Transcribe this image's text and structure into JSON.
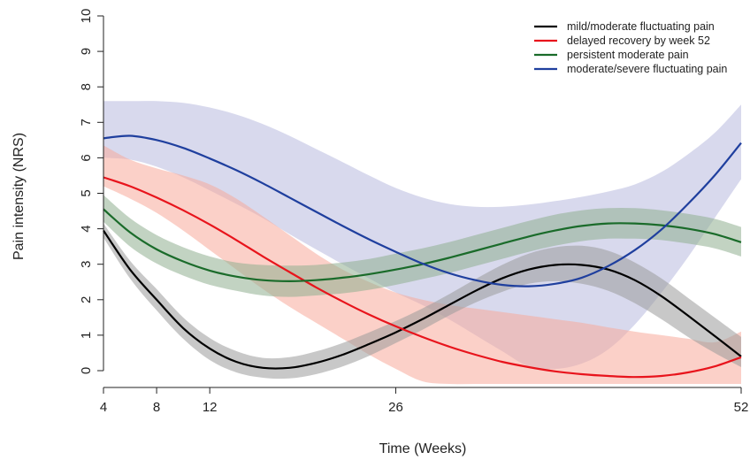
{
  "chart_data": {
    "type": "line",
    "title": "",
    "xlabel": "Time (Weeks)",
    "ylabel": "Pain intensity (NRS)",
    "xlim": [
      4,
      52
    ],
    "ylim": [
      0,
      10
    ],
    "xticks": [
      4,
      8,
      12,
      26,
      52
    ],
    "yticks": [
      0,
      1,
      2,
      3,
      4,
      5,
      6,
      7,
      8,
      9,
      10
    ],
    "grid": false,
    "legend_position": "top-right",
    "x": [
      4,
      6,
      8,
      10,
      12,
      14,
      16,
      18,
      20,
      22,
      24,
      26,
      28,
      30,
      32,
      34,
      36,
      38,
      40,
      42,
      44,
      46,
      48,
      50,
      52
    ],
    "series": [
      {
        "name": "mild/moderate fluctuating pain",
        "color": "#000000",
        "band_color": "#9a9a9a",
        "values": [
          3.95,
          2.85,
          2.0,
          1.2,
          0.62,
          0.25,
          0.08,
          0.08,
          0.22,
          0.45,
          0.75,
          1.08,
          1.45,
          1.85,
          2.25,
          2.6,
          2.85,
          2.98,
          2.98,
          2.85,
          2.55,
          2.1,
          1.55,
          0.98,
          0.4
        ],
        "lower": [
          3.75,
          2.6,
          1.7,
          0.9,
          0.3,
          -0.05,
          -0.2,
          -0.22,
          -0.1,
          0.12,
          0.42,
          0.78,
          1.15,
          1.55,
          1.92,
          2.22,
          2.45,
          2.52,
          2.45,
          2.25,
          1.9,
          1.45,
          0.95,
          0.5,
          0.1
        ],
        "upper": [
          4.15,
          3.1,
          2.3,
          1.5,
          0.92,
          0.55,
          0.36,
          0.38,
          0.54,
          0.78,
          1.08,
          1.4,
          1.75,
          2.15,
          2.58,
          2.98,
          3.3,
          3.48,
          3.52,
          3.38,
          3.05,
          2.6,
          2.05,
          1.5,
          0.95
        ]
      },
      {
        "name": "delayed recovery by week 52",
        "color": "#e8141c",
        "band_color": "#f7a99a",
        "values": [
          5.45,
          5.2,
          4.88,
          4.52,
          4.12,
          3.68,
          3.22,
          2.78,
          2.35,
          1.95,
          1.58,
          1.25,
          0.95,
          0.68,
          0.45,
          0.25,
          0.1,
          -0.02,
          -0.1,
          -0.15,
          -0.18,
          -0.15,
          -0.05,
          0.12,
          0.38
        ],
        "lower": [
          5.2,
          4.85,
          4.45,
          3.95,
          3.4,
          2.85,
          2.3,
          1.8,
          1.35,
          0.9,
          0.45,
          0.05,
          -0.3,
          -0.4,
          -0.4,
          -0.4,
          -0.4,
          -0.4,
          -0.4,
          -0.4,
          -0.4,
          -0.4,
          -0.4,
          -0.4,
          -0.4
        ],
        "upper": [
          6.35,
          5.95,
          5.7,
          5.5,
          5.25,
          4.85,
          4.35,
          3.82,
          3.3,
          2.85,
          2.5,
          2.2,
          2.0,
          1.85,
          1.75,
          1.65,
          1.55,
          1.45,
          1.35,
          1.22,
          1.1,
          1.0,
          0.9,
          0.8,
          1.1
        ]
      },
      {
        "name": "persistent moderate pain",
        "color": "#1a6b2a",
        "band_color": "#8fae8f",
        "values": [
          4.55,
          3.9,
          3.42,
          3.08,
          2.82,
          2.65,
          2.55,
          2.52,
          2.55,
          2.62,
          2.72,
          2.85,
          3.0,
          3.18,
          3.38,
          3.58,
          3.78,
          3.95,
          4.08,
          4.15,
          4.15,
          4.1,
          4.0,
          3.85,
          3.62
        ],
        "lower": [
          4.2,
          3.5,
          3.02,
          2.68,
          2.42,
          2.25,
          2.12,
          2.08,
          2.12,
          2.18,
          2.28,
          2.42,
          2.58,
          2.75,
          2.95,
          3.15,
          3.35,
          3.52,
          3.65,
          3.72,
          3.72,
          3.68,
          3.58,
          3.45,
          3.22
        ],
        "upper": [
          4.95,
          4.3,
          3.82,
          3.48,
          3.22,
          3.05,
          2.98,
          2.96,
          2.98,
          3.05,
          3.15,
          3.3,
          3.45,
          3.62,
          3.82,
          4.02,
          4.22,
          4.4,
          4.52,
          4.58,
          4.58,
          4.52,
          4.42,
          4.28,
          4.05
        ]
      },
      {
        "name": "moderate/severe fluctuating pain",
        "color": "#1f3f9e",
        "band_color": "#b8bade",
        "values": [
          6.55,
          6.62,
          6.5,
          6.28,
          5.98,
          5.65,
          5.28,
          4.88,
          4.48,
          4.08,
          3.7,
          3.35,
          3.02,
          2.75,
          2.55,
          2.42,
          2.38,
          2.45,
          2.62,
          2.95,
          3.4,
          3.98,
          4.7,
          5.5,
          6.42
        ],
        "lower": [
          6.0,
          5.95,
          5.75,
          5.45,
          5.08,
          4.7,
          4.3,
          3.85,
          3.42,
          3.0,
          2.6,
          2.2,
          1.85,
          1.45,
          1.0,
          0.55,
          0.12,
          0.05,
          0.2,
          0.6,
          1.3,
          2.2,
          3.2,
          4.3,
          5.4
        ],
        "upper": [
          7.6,
          7.6,
          7.6,
          7.55,
          7.42,
          7.22,
          6.95,
          6.62,
          6.25,
          5.88,
          5.5,
          5.15,
          4.88,
          4.7,
          4.62,
          4.62,
          4.68,
          4.78,
          4.9,
          5.05,
          5.25,
          5.6,
          6.1,
          6.7,
          7.5
        ]
      }
    ]
  }
}
